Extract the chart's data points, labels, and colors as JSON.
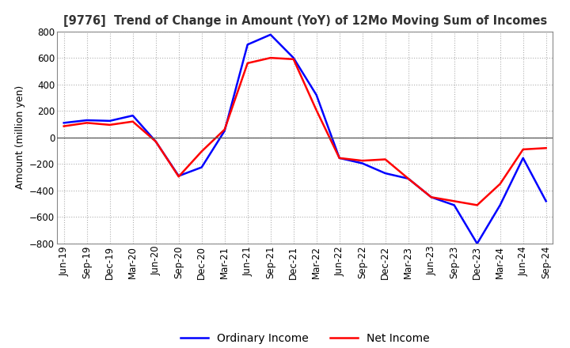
{
  "title": "[9776]  Trend of Change in Amount (YoY) of 12Mo Moving Sum of Incomes",
  "ylabel": "Amount (million yen)",
  "x_labels": [
    "Jun-19",
    "Sep-19",
    "Dec-19",
    "Mar-20",
    "Jun-20",
    "Sep-20",
    "Dec-20",
    "Mar-21",
    "Jun-21",
    "Sep-21",
    "Dec-21",
    "Mar-22",
    "Jun-22",
    "Sep-22",
    "Dec-22",
    "Mar-23",
    "Jun-23",
    "Sep-23",
    "Dec-23",
    "Mar-24",
    "Jun-24",
    "Sep-24"
  ],
  "ordinary_income": [
    110,
    130,
    125,
    165,
    -30,
    -290,
    -225,
    50,
    700,
    775,
    600,
    320,
    -155,
    -195,
    -270,
    -310,
    -450,
    -510,
    -800,
    -510,
    -155,
    -480
  ],
  "net_income": [
    85,
    110,
    95,
    120,
    -30,
    -295,
    -105,
    60,
    560,
    600,
    590,
    205,
    -155,
    -175,
    -165,
    -310,
    -450,
    -480,
    -510,
    -350,
    -90,
    -80
  ],
  "ordinary_color": "#0000ff",
  "net_color": "#ff0000",
  "ylim": [
    -800,
    800
  ],
  "yticks": [
    -800,
    -600,
    -400,
    -200,
    0,
    200,
    400,
    600,
    800
  ],
  "background_color": "#ffffff",
  "grid_color": "#b0b0b0",
  "legend_labels": [
    "Ordinary Income",
    "Net Income"
  ],
  "title_fontsize": 10.5,
  "ylabel_fontsize": 9,
  "tick_fontsize": 8.5
}
